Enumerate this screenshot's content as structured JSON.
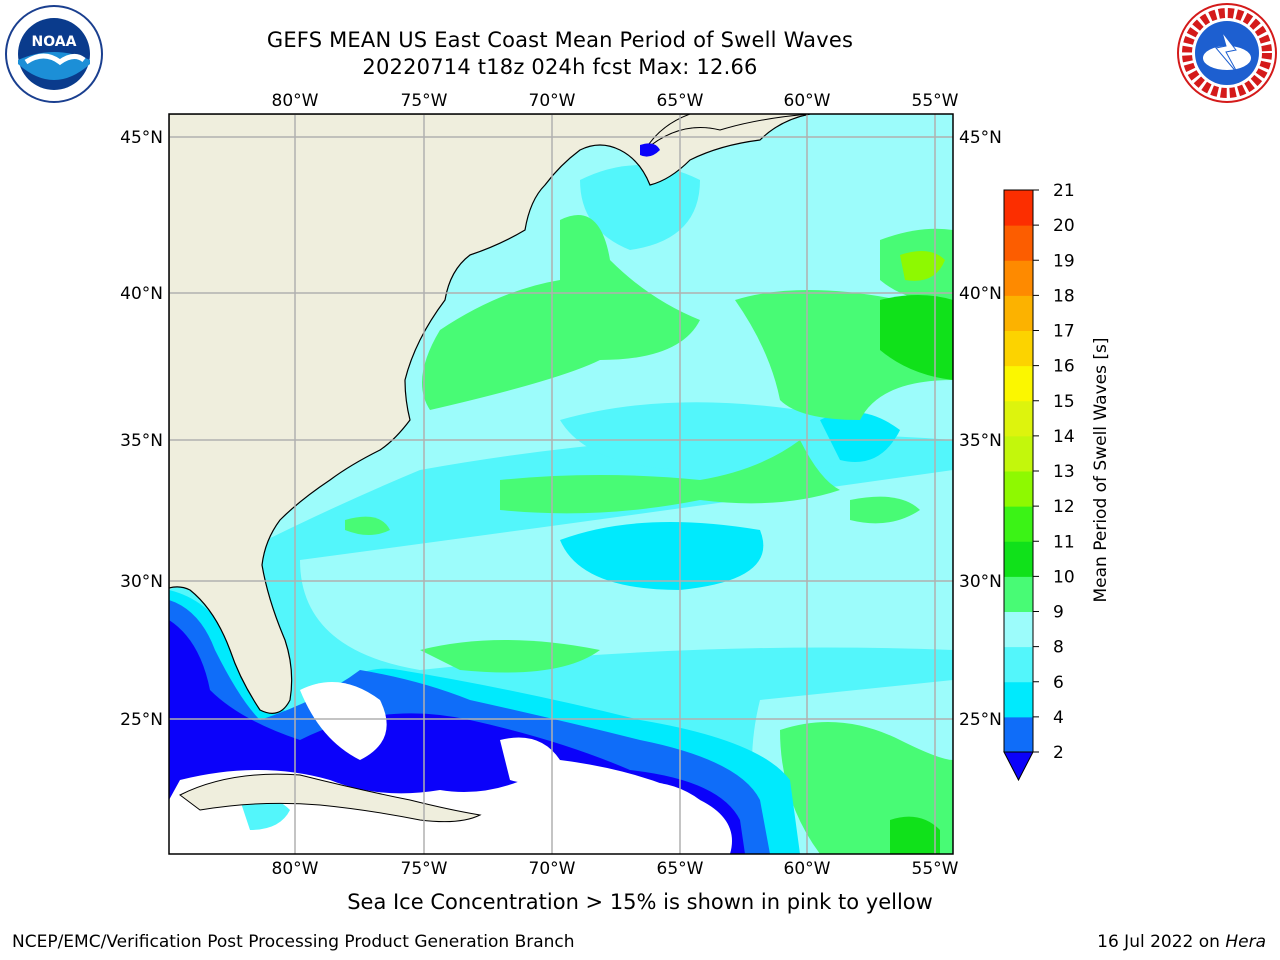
{
  "header": {
    "title_line1": "GEFS MEAN US East Coast Mean Period of Swell Waves",
    "title_line2": "20220714 t18z 024h fcst   Max: 12.66"
  },
  "logos": {
    "left": {
      "icon": "noaa-logo-icon",
      "text": "NOAA"
    },
    "right": {
      "icon": "national-weather-service-logo-icon",
      "text": "NATIONAL WEATHER SERVICE"
    }
  },
  "map": {
    "longitude_labels": [
      "80°W",
      "75°W",
      "70°W",
      "65°W",
      "60°W",
      "55°W"
    ],
    "latitude_labels": [
      "45°N",
      "40°N",
      "35°N",
      "30°N",
      "25°N"
    ],
    "land_color": "#efeedd",
    "no_data_color": "#ffffff",
    "grid": true
  },
  "colorbar": {
    "label": "Mean Period of Swell Waves [s]",
    "ticks": [
      "2",
      "4",
      "6",
      "8",
      "9",
      "10",
      "11",
      "12",
      "13",
      "14",
      "15",
      "16",
      "17",
      "18",
      "19",
      "20",
      "21"
    ],
    "colors": [
      "#0f6df9",
      "#00eafd",
      "#53f6fb",
      "#9cfcfb",
      "#48fb75",
      "#10e11a",
      "#3bf316",
      "#8ef901",
      "#c3f70c",
      "#ddf40d",
      "#fbf700",
      "#fcd300",
      "#fcb200",
      "#fe8a00",
      "#fc5d00",
      "#fc2e00",
      "#fb0000"
    ],
    "under_color": "#0b02fa"
  },
  "notes": {
    "sea_ice": "Sea Ice Concentration > 15% is shown in pink to yellow"
  },
  "footer": {
    "left": "NCEP/EMC/Verification Post Processing Product Generation Branch",
    "right_prefix": "16 Jul 2022 on ",
    "right_machine": "Hera"
  }
}
